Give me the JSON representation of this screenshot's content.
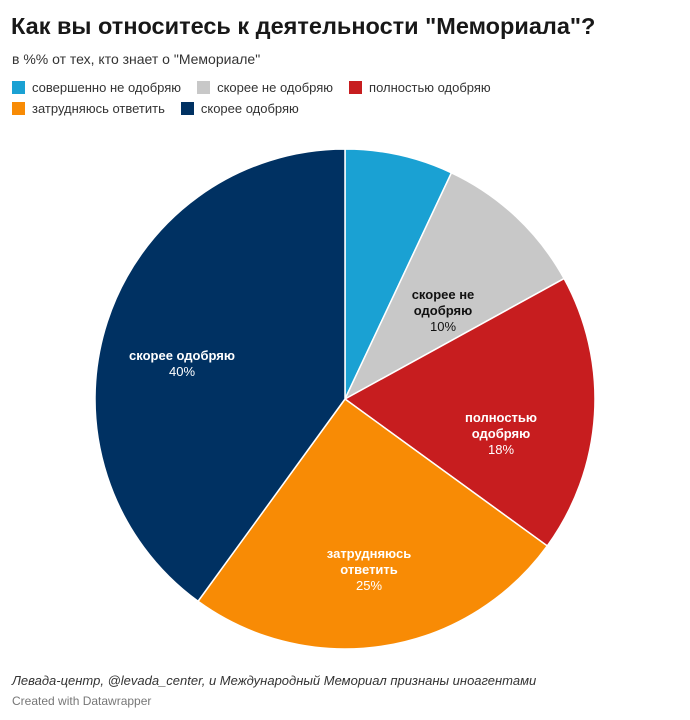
{
  "title": "Как вы относитесь к деятельности \"Мемориала\"?",
  "subtitle": "в %% от тех, кто знает о \"Мемориале\"",
  "legend": [
    {
      "label": "совершенно не одобряю",
      "color": "#1aa1d3"
    },
    {
      "label": "скорее не одобряю",
      "color": "#c8c8c8"
    },
    {
      "label": "полностью одобряю",
      "color": "#c71d1f"
    },
    {
      "label": "затрудняюсь ответить",
      "color": "#f88b05"
    },
    {
      "label": "скорее одобряю",
      "color": "#003162"
    }
  ],
  "chart_data": {
    "type": "pie",
    "slices": [
      {
        "label": "совершенно не одобряю",
        "value": 7,
        "color": "#1aa1d3",
        "label_lines": [],
        "value_label": ""
      },
      {
        "label": "скорее не одобряю",
        "value": 10,
        "color": "#c8c8c8",
        "label_lines": [
          "скорее не",
          "одобряю"
        ],
        "value_label": "10%"
      },
      {
        "label": "полностью одобряю",
        "value": 18,
        "color": "#c71d1f",
        "label_lines": [
          "полностью",
          "одобряю"
        ],
        "value_label": "18%"
      },
      {
        "label": "затрудняюсь ответить",
        "value": 25,
        "color": "#f88b05",
        "label_lines": [
          "затрудняюсь",
          "ответить"
        ],
        "value_label": "25%"
      },
      {
        "label": "скорее одобряю",
        "value": 40,
        "color": "#003162",
        "label_lines": [
          "скорее одобряю"
        ],
        "value_label": "40%"
      }
    ]
  },
  "footer": {
    "note": "Левада-центр, @levada_center, и Международный Мемориал признаны иноагентами",
    "credit": "Created with Datawrapper"
  }
}
